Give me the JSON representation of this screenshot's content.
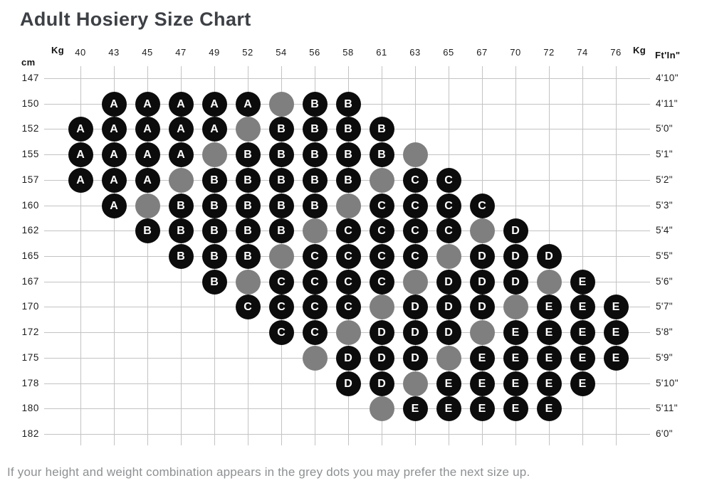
{
  "title": "Adult Hosiery Size Chart",
  "footer_note": "If your height and weight combination appears in the grey dots you may prefer the next size up.",
  "axes": {
    "kg_label": "Kg",
    "cm_label": "cm",
    "ftin_label": "Ft'In\""
  },
  "colors": {
    "dot_black": "#0c0c0c",
    "dot_grey": "#7f7f7f",
    "grid": "#c3c3c3",
    "title_text": "#3d4045",
    "axis_text": "#1d1d1d",
    "note_text": "#8d9092"
  },
  "chart_data": {
    "type": "scatter",
    "title": "Adult Hosiery Size Chart",
    "xlabel": "Kg",
    "ylabel_left": "cm",
    "ylabel_right": "Ft'In\"",
    "sizes": [
      "A",
      "B",
      "C",
      "D",
      "E"
    ],
    "grey_dot_note": "If your height and weight combination appears in the grey dots you may prefer the next size up.",
    "weights_kg": [
      "40",
      "43",
      "45",
      "47",
      "49",
      "52",
      "54",
      "56",
      "58",
      "61",
      "63",
      "65",
      "67",
      "70",
      "72",
      "74",
      "76"
    ],
    "rows": [
      {
        "cm": "147",
        "ftin": "4'10\"",
        "dots": [
          "",
          "",
          "",
          "",
          "",
          "",
          "",
          "",
          "",
          "",
          "",
          "",
          "",
          "",
          "",
          "",
          ""
        ]
      },
      {
        "cm": "150",
        "ftin": "4'11\"",
        "dots": [
          "",
          "A",
          "A",
          "A",
          "A",
          "A",
          "grey",
          "B",
          "B",
          "",
          "",
          "",
          "",
          "",
          "",
          "",
          ""
        ]
      },
      {
        "cm": "152",
        "ftin": "5'0\"",
        "dots": [
          "A",
          "A",
          "A",
          "A",
          "A",
          "grey",
          "B",
          "B",
          "B",
          "B",
          "",
          "",
          "",
          "",
          "",
          "",
          ""
        ]
      },
      {
        "cm": "155",
        "ftin": "5'1\"",
        "dots": [
          "A",
          "A",
          "A",
          "A",
          "grey",
          "B",
          "B",
          "B",
          "B",
          "B",
          "grey",
          "",
          "",
          "",
          "",
          "",
          ""
        ]
      },
      {
        "cm": "157",
        "ftin": "5'2\"",
        "dots": [
          "A",
          "A",
          "A",
          "grey",
          "B",
          "B",
          "B",
          "B",
          "B",
          "grey",
          "C",
          "C",
          "",
          "",
          "",
          "",
          ""
        ]
      },
      {
        "cm": "160",
        "ftin": "5'3\"",
        "dots": [
          "",
          "A",
          "grey",
          "B",
          "B",
          "B",
          "B",
          "B",
          "grey",
          "C",
          "C",
          "C",
          "C",
          "",
          "",
          "",
          ""
        ]
      },
      {
        "cm": "162",
        "ftin": "5'4\"",
        "dots": [
          "",
          "",
          "B",
          "B",
          "B",
          "B",
          "B",
          "grey",
          "C",
          "C",
          "C",
          "C",
          "grey",
          "D",
          "",
          "",
          ""
        ]
      },
      {
        "cm": "165",
        "ftin": "5'5\"",
        "dots": [
          "",
          "",
          "",
          "B",
          "B",
          "B",
          "grey",
          "C",
          "C",
          "C",
          "C",
          "grey",
          "D",
          "D",
          "D",
          "",
          ""
        ]
      },
      {
        "cm": "167",
        "ftin": "5'6\"",
        "dots": [
          "",
          "",
          "",
          "",
          "B",
          "grey",
          "C",
          "C",
          "C",
          "C",
          "grey",
          "D",
          "D",
          "D",
          "grey",
          "E",
          ""
        ]
      },
      {
        "cm": "170",
        "ftin": "5'7\"",
        "dots": [
          "",
          "",
          "",
          "",
          "",
          "C",
          "C",
          "C",
          "C",
          "grey",
          "D",
          "D",
          "D",
          "grey",
          "E",
          "E",
          "E"
        ]
      },
      {
        "cm": "172",
        "ftin": "5'8\"",
        "dots": [
          "",
          "",
          "",
          "",
          "",
          "",
          "C",
          "C",
          "grey",
          "D",
          "D",
          "D",
          "grey",
          "E",
          "E",
          "E",
          "E"
        ]
      },
      {
        "cm": "175",
        "ftin": "5'9\"",
        "dots": [
          "",
          "",
          "",
          "",
          "",
          "",
          "",
          "grey",
          "D",
          "D",
          "D",
          "grey",
          "E",
          "E",
          "E",
          "E",
          "E"
        ]
      },
      {
        "cm": "178",
        "ftin": "5'10\"",
        "dots": [
          "",
          "",
          "",
          "",
          "",
          "",
          "",
          "",
          "D",
          "D",
          "grey",
          "E",
          "E",
          "E",
          "E",
          "E",
          ""
        ]
      },
      {
        "cm": "180",
        "ftin": "5'11\"",
        "dots": [
          "",
          "",
          "",
          "",
          "",
          "",
          "",
          "",
          "",
          "grey",
          "E",
          "E",
          "E",
          "E",
          "E",
          "",
          ""
        ]
      },
      {
        "cm": "182",
        "ftin": "6'0\"",
        "dots": [
          "",
          "",
          "",
          "",
          "",
          "",
          "",
          "",
          "",
          "",
          "",
          "",
          "",
          "",
          "",
          "",
          ""
        ]
      }
    ]
  }
}
